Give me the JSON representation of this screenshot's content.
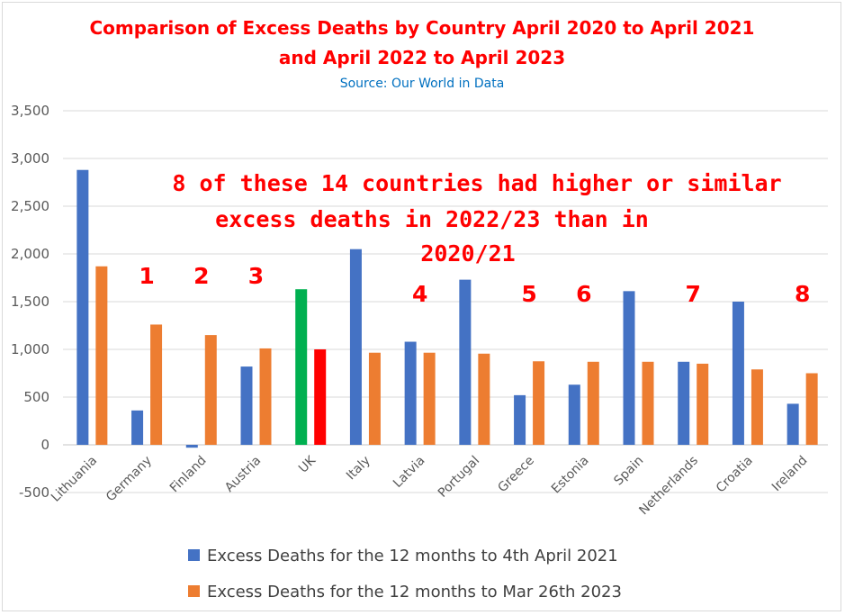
{
  "chart_data": {
    "type": "bar",
    "title_lines": [
      "Comparison of Excess Deaths by Country April 2020 to April 2021",
      "and April 2022 to April 2023"
    ],
    "subtitle": "Source: Our World in Data",
    "xlabel": "",
    "ylabel": "",
    "ylim": [
      -500,
      3500
    ],
    "yticks": [
      -500,
      0,
      500,
      1000,
      1500,
      2000,
      2500,
      3000,
      3500
    ],
    "ytick_labels": [
      "-500",
      "0",
      "500",
      "1,000",
      "1,500",
      "2,000",
      "2,500",
      "3,000",
      "3,500"
    ],
    "grid": true,
    "legend_position": "bottom",
    "categories": [
      "Lithuania",
      "Germany",
      "Finland",
      "Austria",
      "UK",
      "Italy",
      "Latvia",
      "Portugal",
      "Greece",
      "Estonia",
      "Spain",
      "Netherlands",
      "Croatia",
      "Ireland"
    ],
    "series": [
      {
        "name": "Excess Deaths for the 12 months to 4th April 2021",
        "color": "#4472c4",
        "values": [
          2880,
          360,
          -30,
          820,
          1630,
          2050,
          1080,
          1730,
          520,
          630,
          1610,
          870,
          1500,
          430
        ]
      },
      {
        "name": "Excess Deaths for the 12 months to Mar 26th 2023",
        "color": "#ed7d31",
        "values": [
          1870,
          1260,
          1150,
          1010,
          1000,
          965,
          965,
          955,
          875,
          870,
          870,
          850,
          790,
          750
        ]
      }
    ],
    "highlight": {
      "category": "UK",
      "colors": [
        "#00b050",
        "#ff0000"
      ]
    },
    "annotation_lines": [
      "8 of these 14 countries had higher or similar",
      "excess deaths in 2022/23 than in",
      "2020/21"
    ],
    "count_markers": [
      {
        "label": "1",
        "category": "Germany"
      },
      {
        "label": "2",
        "category": "Finland"
      },
      {
        "label": "3",
        "category": "Austria"
      },
      {
        "label": "4",
        "category": "Latvia"
      },
      {
        "label": "5",
        "category": "Greece"
      },
      {
        "label": "6",
        "category": "Estonia"
      },
      {
        "label": "7",
        "category": "Netherlands"
      },
      {
        "label": "8",
        "category": "Ireland"
      }
    ]
  }
}
